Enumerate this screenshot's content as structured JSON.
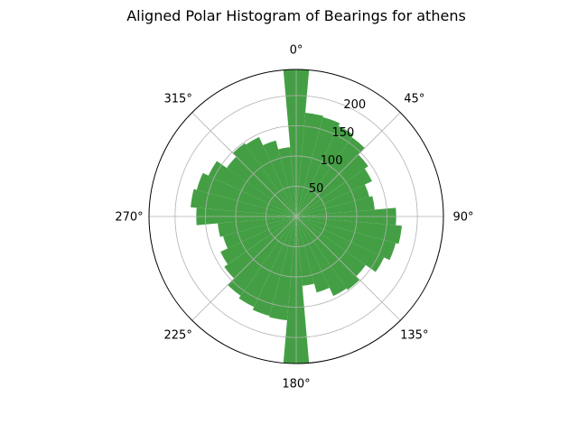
{
  "chart_data": {
    "type": "polar-bar",
    "title": "Aligned Polar Histogram of Bearings for athens",
    "bin_width_deg": 10,
    "bin_centers_deg": [
      0,
      10,
      20,
      30,
      40,
      50,
      60,
      70,
      80,
      90,
      100,
      110,
      120,
      130,
      140,
      150,
      160,
      170,
      180,
      190,
      200,
      210,
      220,
      230,
      240,
      250,
      260,
      270,
      280,
      290,
      300,
      310,
      320,
      330,
      340,
      350
    ],
    "values": [
      243,
      172,
      170,
      165,
      160,
      145,
      138,
      125,
      130,
      165,
      175,
      170,
      160,
      140,
      148,
      145,
      130,
      115,
      243,
      172,
      170,
      165,
      160,
      145,
      138,
      125,
      130,
      165,
      175,
      170,
      160,
      140,
      148,
      145,
      130,
      115
    ],
    "r_ticks": [
      50,
      100,
      150,
      200
    ],
    "r_tick_labels": [
      "50",
      "100",
      "150",
      "200"
    ],
    "rlim": [
      0,
      243
    ],
    "theta_tick_labels": [
      "0°",
      "45°",
      "90°",
      "135°",
      "180°",
      "225°",
      "270°",
      "315°"
    ],
    "theta_zero": "N",
    "theta_direction": "clockwise",
    "bar_color": "#3a9a3a",
    "grid": true
  }
}
